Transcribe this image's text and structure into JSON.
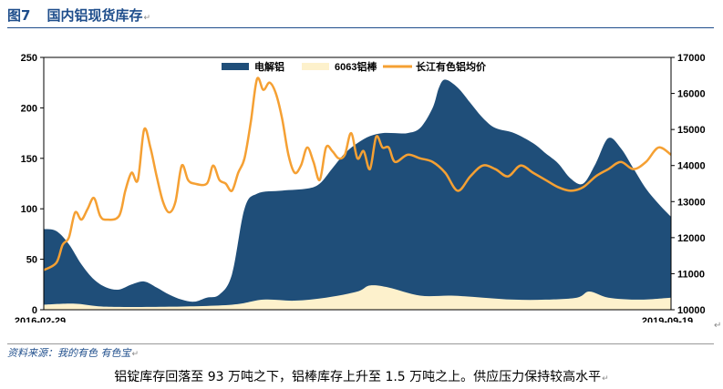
{
  "header": {
    "figure_no": "图7",
    "title": "国内铝现货库存"
  },
  "source": "资料来源：我的有色 有色宝",
  "caption": "铝锭库存回落至 93 万吨之下，铝棒库存上升至 1.5 万吨之上。供应压力保持较高水平",
  "colors": {
    "area_primary": "#1f4e79",
    "area_secondary": "#fdf1cc",
    "line": "#f5a033"
  },
  "chart_data": {
    "type": "area",
    "x_start": "2016-02-29",
    "x_end": "2019-09-19",
    "x_tick_labels": [
      "2016-02-29",
      "2019-09-19"
    ],
    "ylim_left": [
      0,
      250
    ],
    "yticks_left": [
      "0",
      "50",
      "100",
      "150",
      "200",
      "250"
    ],
    "ylim_right": [
      10000,
      17000
    ],
    "yticks_right": [
      "10000",
      "11000",
      "12000",
      "13000",
      "14000",
      "15000",
      "16000",
      "17000"
    ],
    "grid": false,
    "legend_position": "top",
    "series": [
      {
        "name": "电解铝",
        "type": "area",
        "axis": "left",
        "values": [
          [
            0,
            80
          ],
          [
            0.02,
            78
          ],
          [
            0.04,
            65
          ],
          [
            0.06,
            45
          ],
          [
            0.08,
            30
          ],
          [
            0.1,
            22
          ],
          [
            0.12,
            20
          ],
          [
            0.14,
            25
          ],
          [
            0.16,
            28
          ],
          [
            0.18,
            22
          ],
          [
            0.2,
            15
          ],
          [
            0.22,
            10
          ],
          [
            0.24,
            8
          ],
          [
            0.26,
            12
          ],
          [
            0.28,
            15
          ],
          [
            0.3,
            35
          ],
          [
            0.32,
            100
          ],
          [
            0.34,
            115
          ],
          [
            0.38,
            118
          ],
          [
            0.42,
            120
          ],
          [
            0.44,
            125
          ],
          [
            0.46,
            140
          ],
          [
            0.48,
            155
          ],
          [
            0.5,
            165
          ],
          [
            0.52,
            172
          ],
          [
            0.54,
            175
          ],
          [
            0.56,
            175
          ],
          [
            0.58,
            175
          ],
          [
            0.6,
            180
          ],
          [
            0.62,
            200
          ],
          [
            0.63,
            220
          ],
          [
            0.64,
            228
          ],
          [
            0.66,
            220
          ],
          [
            0.68,
            205
          ],
          [
            0.7,
            190
          ],
          [
            0.72,
            180
          ],
          [
            0.75,
            175
          ],
          [
            0.78,
            165
          ],
          [
            0.8,
            155
          ],
          [
            0.82,
            145
          ],
          [
            0.84,
            130
          ],
          [
            0.86,
            125
          ],
          [
            0.88,
            145
          ],
          [
            0.9,
            170
          ],
          [
            0.92,
            160
          ],
          [
            0.94,
            140
          ],
          [
            0.96,
            120
          ],
          [
            0.98,
            105
          ],
          [
            1,
            92
          ]
        ]
      },
      {
        "name": "6063铝棒",
        "type": "area",
        "axis": "left",
        "values": [
          [
            0,
            5
          ],
          [
            0.05,
            6
          ],
          [
            0.1,
            3
          ],
          [
            0.2,
            3
          ],
          [
            0.3,
            5
          ],
          [
            0.35,
            10
          ],
          [
            0.4,
            9
          ],
          [
            0.45,
            12
          ],
          [
            0.5,
            18
          ],
          [
            0.52,
            24
          ],
          [
            0.55,
            22
          ],
          [
            0.6,
            14
          ],
          [
            0.65,
            14
          ],
          [
            0.7,
            12
          ],
          [
            0.75,
            10
          ],
          [
            0.8,
            10
          ],
          [
            0.85,
            12
          ],
          [
            0.87,
            18
          ],
          [
            0.9,
            12
          ],
          [
            0.95,
            10
          ],
          [
            1,
            12
          ]
        ]
      },
      {
        "name": "长江有色铝均价",
        "type": "line",
        "axis": "right",
        "values": [
          [
            0,
            11100
          ],
          [
            0.02,
            11300
          ],
          [
            0.03,
            11800
          ],
          [
            0.04,
            12000
          ],
          [
            0.05,
            12700
          ],
          [
            0.06,
            12500
          ],
          [
            0.07,
            12800
          ],
          [
            0.08,
            13100
          ],
          [
            0.09,
            12600
          ],
          [
            0.1,
            12500
          ],
          [
            0.12,
            12600
          ],
          [
            0.13,
            13300
          ],
          [
            0.14,
            13800
          ],
          [
            0.15,
            13600
          ],
          [
            0.16,
            15000
          ],
          [
            0.17,
            14500
          ],
          [
            0.18,
            13700
          ],
          [
            0.19,
            13000
          ],
          [
            0.2,
            12700
          ],
          [
            0.21,
            13000
          ],
          [
            0.22,
            14000
          ],
          [
            0.23,
            13600
          ],
          [
            0.24,
            13500
          ],
          [
            0.26,
            13500
          ],
          [
            0.27,
            14000
          ],
          [
            0.28,
            13600
          ],
          [
            0.29,
            13500
          ],
          [
            0.3,
            13300
          ],
          [
            0.31,
            13800
          ],
          [
            0.32,
            14200
          ],
          [
            0.33,
            15200
          ],
          [
            0.34,
            16400
          ],
          [
            0.35,
            16100
          ],
          [
            0.36,
            16300
          ],
          [
            0.37,
            16000
          ],
          [
            0.38,
            15300
          ],
          [
            0.39,
            14300
          ],
          [
            0.4,
            13800
          ],
          [
            0.41,
            14000
          ],
          [
            0.42,
            14500
          ],
          [
            0.43,
            14100
          ],
          [
            0.44,
            13600
          ],
          [
            0.45,
            14500
          ],
          [
            0.46,
            14400
          ],
          [
            0.47,
            14200
          ],
          [
            0.48,
            14300
          ],
          [
            0.49,
            14900
          ],
          [
            0.5,
            14200
          ],
          [
            0.51,
            14400
          ],
          [
            0.52,
            13900
          ],
          [
            0.53,
            14800
          ],
          [
            0.54,
            14500
          ],
          [
            0.55,
            14500
          ],
          [
            0.56,
            14100
          ],
          [
            0.58,
            14300
          ],
          [
            0.6,
            14200
          ],
          [
            0.62,
            14100
          ],
          [
            0.64,
            13800
          ],
          [
            0.66,
            13300
          ],
          [
            0.68,
            13700
          ],
          [
            0.7,
            14000
          ],
          [
            0.72,
            13900
          ],
          [
            0.74,
            13700
          ],
          [
            0.76,
            14000
          ],
          [
            0.78,
            13800
          ],
          [
            0.8,
            13600
          ],
          [
            0.82,
            13400
          ],
          [
            0.84,
            13300
          ],
          [
            0.86,
            13400
          ],
          [
            0.88,
            13700
          ],
          [
            0.9,
            13900
          ],
          [
            0.92,
            14100
          ],
          [
            0.94,
            13900
          ],
          [
            0.96,
            14100
          ],
          [
            0.98,
            14500
          ],
          [
            1,
            14300
          ]
        ]
      }
    ]
  }
}
